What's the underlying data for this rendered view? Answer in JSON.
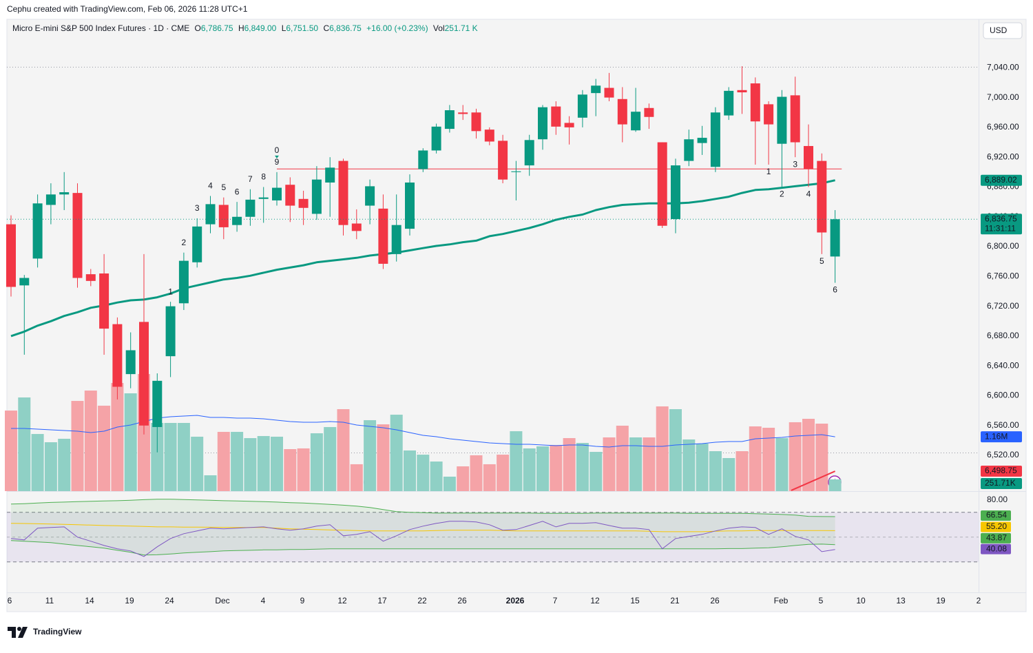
{
  "header": {
    "credit": "Cephu created with TradingView.com, Feb 06, 2026 11:28 UTC+1"
  },
  "chart_data": {
    "type": "candlestick",
    "symbol": "Micro E-mini S&P 500 Index Futures · 1D · CME",
    "legend": {
      "o_label": "O",
      "o": "6,786.75",
      "h_label": "H",
      "h": "6,849.00",
      "l_label": "L",
      "l": "6,751.50",
      "c_label": "C",
      "c": "6,836.75",
      "change": "+16.00 (+0.23%)",
      "vol_label": "Vol",
      "vol": "251.71 K"
    },
    "currency": "USD",
    "x_labels": [
      "6",
      "11",
      "14",
      "19",
      "24",
      "Dec",
      "4",
      "9",
      "12",
      "17",
      "22",
      "26",
      "2026",
      "7",
      "12",
      "15",
      "21",
      "26",
      "Feb",
      "5",
      "10",
      "13",
      "19",
      "2"
    ],
    "open": [
      6830,
      6748,
      6784,
      6856,
      6870,
      6872,
      6763,
      6764,
      6696,
      6629,
      6699,
      6558,
      6653,
      6724,
      6779,
      6830,
      6856,
      6829,
      6840,
      6864,
      6862,
      6883,
      6864,
      6844,
      6886,
      6915,
      6831,
      6855,
      6851,
      6790,
      6824,
      6904,
      6929,
      6958,
      6980,
      6980,
      6957,
      6942,
      6900,
      6909,
      6944,
      6988,
      6966,
      6973,
      7006,
      7013,
      6998,
      6956,
      6986,
      6940,
      6837,
      6915,
      6939,
      6907,
      6976,
      7010,
      7019,
      6991,
      6938,
      7003,
      6935,
      6915,
      6786.75
    ],
    "high": [
      6842,
      6762,
      6870,
      6885,
      6900,
      6885,
      6770,
      6790,
      6705,
      6685,
      6790,
      6630,
      6726,
      6792,
      6838,
      6868,
      6866,
      6860,
      6877,
      6880,
      6900,
      6893,
      6875,
      6908,
      6920,
      6918,
      6850,
      6890,
      6870,
      6870,
      6897,
      6932,
      6965,
      6990,
      6990,
      6985,
      6960,
      6950,
      6915,
      6950,
      6990,
      6995,
      6975,
      7010,
      7025,
      7033,
      7014,
      7013,
      6992,
      6940,
      6918,
      6957,
      6962,
      6987,
      7014,
      7042,
      7027,
      6995,
      7010,
      7028,
      6964,
      6925,
      6849
    ],
    "low": [
      6733,
      6655,
      6772,
      6830,
      6849,
      6745,
      6747,
      6655,
      6595,
      6610,
      6548,
      6524,
      6625,
      6715,
      6772,
      6818,
      6810,
      6820,
      6828,
      6832,
      6855,
      6833,
      6829,
      6836,
      6840,
      6815,
      6810,
      6830,
      6770,
      6780,
      6815,
      6900,
      6925,
      6953,
      6970,
      6945,
      6936,
      6885,
      6862,
      6895,
      6930,
      6950,
      6937,
      6960,
      6975,
      6995,
      6940,
      6954,
      6958,
      6825,
      6818,
      6908,
      6923,
      6900,
      6970,
      6978,
      6910,
      6910,
      6880,
      6920,
      6880,
      6790,
      6751.5
    ],
    "close": [
      6746,
      6758,
      6858,
      6870,
      6873,
      6758,
      6754,
      6690,
      6612,
      6661,
      6560,
      6620,
      6720,
      6781,
      6827,
      6857,
      6826,
      6840,
      6863,
      6866,
      6879,
      6855,
      6852,
      6890,
      6906,
      6829,
      6821,
      6881,
      6777,
      6829,
      6886,
      6929,
      6961,
      6983,
      6978,
      6955,
      6941,
      6890,
      6901,
      6943,
      6987,
      6961,
      6960,
      7004,
      7016,
      7000,
      6964,
      6981,
      6974,
      6828,
      6909,
      6944,
      6946,
      6980,
      7009,
      7007,
      6968,
      6964,
      7001,
      6940,
      6904,
      6819,
      6836.75
    ],
    "up_color": "#089981",
    "down_color": "#f23645",
    "ylim": [
      6472,
      7105
    ],
    "yticks": [
      {
        "value": 7040,
        "label": "7,040.00"
      },
      {
        "value": 7000,
        "label": "7,000.00"
      },
      {
        "value": 6960,
        "label": "6,960.00"
      },
      {
        "value": 6920,
        "label": "6,920.00"
      },
      {
        "value": 6880,
        "label": "6,880.00"
      },
      {
        "value": 6840,
        "label": "6,840.00"
      },
      {
        "value": 6800,
        "label": "6,800.00"
      },
      {
        "value": 6760,
        "label": "6,760.00"
      },
      {
        "value": 6720,
        "label": "6,720.00"
      },
      {
        "value": 6680,
        "label": "6,680.00"
      },
      {
        "value": 6640,
        "label": "6,640.00"
      },
      {
        "value": 6600,
        "label": "6,600.00"
      },
      {
        "value": 6560,
        "label": "6,560.00"
      },
      {
        "value": 6520,
        "label": "6,520.00"
      }
    ],
    "grid": false,
    "moving_average": {
      "color": "#089981",
      "label": "6,889.02",
      "values": [
        6680,
        6686,
        6694,
        6700,
        6707,
        6712,
        6718,
        6721,
        6725,
        6728,
        6729,
        6732,
        6737,
        6744,
        6748,
        6752,
        6756,
        6758,
        6761,
        6765,
        6769,
        6772,
        6775,
        6779,
        6781,
        6783,
        6785,
        6788,
        6790,
        6792,
        6795,
        6798,
        6801,
        6803,
        6806,
        6808,
        6814,
        6817,
        6821,
        6825,
        6830,
        6836,
        6840,
        6843,
        6849,
        6853,
        6856,
        6857,
        6858,
        6858,
        6858,
        6859,
        6861,
        6864,
        6867,
        6872,
        6876,
        6877,
        6879,
        6881,
        6883,
        6885,
        6889.02
      ]
    },
    "last_price_label": "6,836.75",
    "countdown": "11:31:11",
    "volume": {
      "up_color": "#8fd0c5",
      "down_color": "#f5a3a7",
      "label": "251.71K",
      "values": [
        1720,
        2000,
        1220,
        1044,
        1118,
        1926,
        2147,
        1824,
        2309,
        2088,
        2500,
        1456,
        1456,
        1456,
        1162,
        338,
        1265,
        1265,
        1132,
        1176,
        1162,
        897,
        912,
        1235,
        1368,
        1750,
        574,
        1515,
        1426,
        1632,
        868,
        779,
        632,
        309,
        529,
        765,
        574,
        779,
        1279,
        912,
        956,
        985,
        1132,
        1029,
        838,
        1147,
        1397,
        1147,
        1147,
        1809,
        1750,
        1103,
        1015,
        853,
        706,
        853,
        1382,
        1353,
        1132,
        1471,
        1544,
        1441,
        251.71
      ],
      "ma_color": "#2962ff",
      "ma_label": "1.16M",
      "ma": [
        1338,
        1338,
        1324,
        1309,
        1294,
        1279,
        1250,
        1279,
        1368,
        1412,
        1485,
        1559,
        1588,
        1603,
        1618,
        1574,
        1574,
        1559,
        1559,
        1544,
        1515,
        1485,
        1471,
        1471,
        1485,
        1471,
        1412,
        1382,
        1353,
        1309,
        1250,
        1191,
        1162,
        1118,
        1088,
        1059,
        1029,
        1015,
        1000,
        1000,
        985,
        971,
        985,
        985,
        956,
        941,
        971,
        971,
        956,
        956,
        985,
        1000,
        1015,
        1044,
        1059,
        1059,
        1118,
        1132,
        1147,
        1176,
        1191,
        1206,
        1160
      ]
    },
    "setup_up": [
      null,
      null,
      null,
      null,
      null,
      null,
      null,
      null,
      null,
      null,
      null,
      null,
      1,
      2,
      3,
      4,
      5,
      6,
      7,
      8,
      9,
      null,
      null,
      null,
      null,
      null,
      null,
      null,
      null,
      null,
      null,
      null,
      null,
      null,
      null,
      null,
      null,
      null,
      null,
      null,
      null,
      null,
      null,
      null,
      null,
      null,
      null,
      null,
      null,
      null,
      null,
      null,
      null,
      null,
      null,
      null,
      null,
      null,
      null,
      null,
      null,
      null,
      null
    ],
    "setup_down": [
      null,
      null,
      null,
      null,
      null,
      null,
      null,
      null,
      null,
      null,
      null,
      null,
      null,
      null,
      null,
      null,
      null,
      null,
      null,
      null,
      null,
      null,
      null,
      null,
      null,
      null,
      null,
      null,
      null,
      null,
      null,
      null,
      null,
      null,
      null,
      null,
      null,
      null,
      null,
      null,
      null,
      null,
      null,
      null,
      null,
      null,
      null,
      null,
      null,
      null,
      null,
      null,
      null,
      null,
      null,
      null,
      null,
      1,
      2,
      3,
      4,
      5,
      6
    ],
    "countdown_marks": [
      null,
      null,
      null,
      null,
      null,
      null,
      null,
      null,
      null,
      null,
      null,
      null,
      null,
      null,
      null,
      null,
      null,
      null,
      null,
      null,
      0,
      null,
      null,
      null,
      null,
      null,
      null,
      null,
      null,
      null,
      null,
      null,
      null,
      null,
      null,
      null,
      null,
      null,
      null,
      null,
      null,
      null,
      null,
      null,
      null,
      null,
      null,
      null,
      null,
      null,
      null,
      null,
      null,
      null,
      null,
      null,
      null,
      null,
      null,
      null,
      null,
      null,
      null
    ],
    "resistance": {
      "value": 6904.25,
      "color": "#f23645"
    },
    "trendline": {
      "values": [
        6473,
        6498.75
      ],
      "label": "6,498.75",
      "color": "#f23645"
    },
    "rsi": {
      "ylim": [
        6,
        86
      ],
      "yticks": [
        {
          "value": 80,
          "label": "80.00"
        }
      ],
      "levels": [
        70,
        50,
        30
      ],
      "color": "#7e57c2",
      "ma_color": "#f7c600",
      "band_color": "#4caf50",
      "value_label": "40.08",
      "ma_label": "55.20",
      "upper_label": "66.54",
      "lower_label": "43.87",
      "values": [
        48.9,
        47.8,
        57.2,
        57.8,
        58.3,
        50,
        46.7,
        43.3,
        40.6,
        38.9,
        34.4,
        42.2,
        48.9,
        52.8,
        55,
        57.2,
        56.7,
        57.2,
        57.8,
        58.3,
        56.7,
        55.6,
        56.7,
        58.9,
        60,
        51.1,
        52.2,
        54.4,
        46.7,
        51.1,
        56.1,
        58.9,
        61.1,
        62.8,
        62.8,
        62.2,
        60,
        55.6,
        56.1,
        59.4,
        62.8,
        58.3,
        61.1,
        61.1,
        61.7,
        59.4,
        57.2,
        57.2,
        56.1,
        40.6,
        48.9,
        50.6,
        52.2,
        55,
        57.2,
        58.3,
        57.8,
        52.2,
        56.7,
        50.6,
        47.8,
        38.3,
        40.08
      ],
      "ma": [
        61.1,
        61,
        60.8,
        60.6,
        60.3,
        60,
        59.7,
        59.4,
        59.2,
        58.9,
        58.6,
        58.3,
        58.3,
        58.1,
        58.1,
        58,
        57.9,
        57.8,
        57.8,
        57.8,
        57.2,
        56.7,
        56.4,
        56.1,
        55.8,
        55.6,
        55.3,
        55,
        55,
        55,
        55,
        55,
        55.3,
        55.6,
        55.6,
        55.6,
        55.6,
        55.3,
        55,
        55,
        55,
        55,
        55,
        55,
        55,
        55,
        55,
        55,
        54.7,
        54.4,
        54.4,
        54.4,
        54.4,
        54.7,
        55,
        55,
        55.3,
        55.3,
        55.3,
        55.3,
        55.3,
        55.3,
        55.2
      ],
      "upper": [
        76.7,
        77,
        77.5,
        78,
        78.3,
        78.6,
        78.9,
        79.2,
        79.4,
        79.7,
        80.2,
        80.6,
        80.6,
        80.3,
        80,
        79.7,
        79.4,
        79.2,
        78.9,
        78.6,
        78.3,
        77.8,
        77.5,
        77,
        76.4,
        75.8,
        75,
        73.9,
        72.2,
        70.6,
        70,
        69.7,
        69.4,
        69.4,
        69.4,
        69.4,
        69.4,
        69.4,
        69.4,
        69.4,
        69.2,
        69.2,
        69.2,
        69.2,
        69.4,
        69.4,
        69.4,
        69.4,
        69.4,
        69.4,
        69.4,
        69.2,
        69.2,
        69.2,
        69.2,
        69.2,
        68.9,
        68.6,
        68.3,
        67.8,
        66.8,
        66.6,
        66.54
      ],
      "lower": [
        47.2,
        46.7,
        46.1,
        45.6,
        44.4,
        43.3,
        42.2,
        41.1,
        39.4,
        37.8,
        35.6,
        35.8,
        36.4,
        37.2,
        37.8,
        38.3,
        38.9,
        39.2,
        39.4,
        39.7,
        39.7,
        40,
        40,
        40.3,
        40.6,
        40.6,
        40.6,
        40.6,
        40.6,
        40.6,
        40.6,
        40.6,
        40.6,
        40.6,
        40.6,
        40.6,
        40.6,
        40.6,
        40.6,
        40.6,
        40.6,
        40.6,
        40.6,
        40.6,
        40.6,
        40.6,
        40.6,
        40.6,
        40.6,
        40.6,
        40.6,
        40.6,
        40.6,
        40.6,
        40.8,
        40.8,
        41.1,
        41.4,
        42.2,
        43.3,
        44.2,
        44.4,
        43.87
      ]
    }
  },
  "footer": {
    "brand": "TradingView"
  }
}
